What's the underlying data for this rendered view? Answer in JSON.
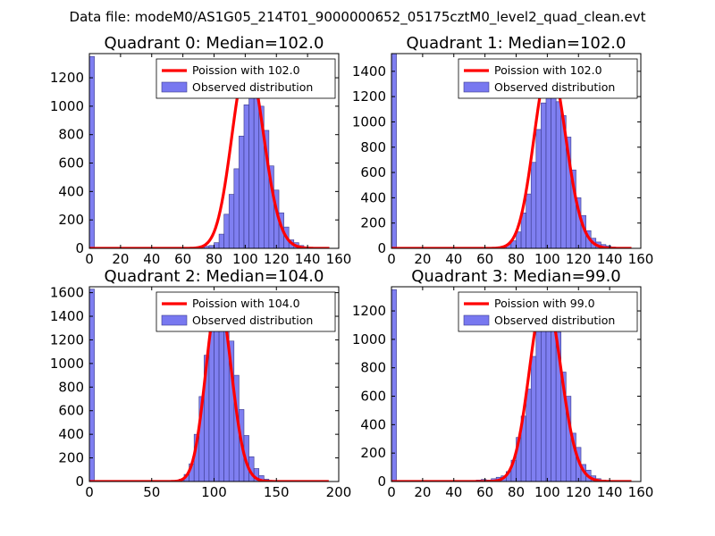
{
  "suptitle": "Data file: modeM0/AS1G05_214T01_9000000652_05175cztM0_level2_quad_clean.evt",
  "colors": {
    "bars": "#7878f0",
    "bar_edge": "#3a3a8a",
    "fit": "#ff0000",
    "axis": "#000000"
  },
  "chart_data": [
    {
      "type": "bar",
      "title": "Quadrant 0: Median=102.0",
      "median": 102.0,
      "xlim": [
        0,
        160
      ],
      "ylim": [
        0,
        1370
      ],
      "xticks": [
        "0",
        "20",
        "40",
        "60",
        "80",
        "100",
        "120",
        "140",
        "160"
      ],
      "xtick_values": [
        0,
        20,
        40,
        60,
        80,
        100,
        120,
        140,
        160
      ],
      "yticks": [
        "0",
        "200",
        "400",
        "600",
        "800",
        "1000",
        "1200"
      ],
      "ytick_values": [
        0,
        200,
        400,
        600,
        800,
        1000,
        1200
      ],
      "legend": [
        "Poission with 102.0",
        "Observed distribution"
      ],
      "bin_width": 3.2,
      "bins": [
        [
          0,
          1350
        ],
        [
          3.2,
          0
        ],
        [
          6.4,
          0
        ],
        [
          9.6,
          0
        ],
        [
          12.8,
          0
        ],
        [
          16,
          0
        ],
        [
          19.2,
          0
        ],
        [
          22.4,
          0
        ],
        [
          25.6,
          0
        ],
        [
          28.8,
          0
        ],
        [
          32,
          0
        ],
        [
          35.2,
          0
        ],
        [
          38.4,
          0
        ],
        [
          41.6,
          0
        ],
        [
          44.8,
          0
        ],
        [
          48,
          0
        ],
        [
          51.2,
          0
        ],
        [
          54.4,
          0
        ],
        [
          57.6,
          0
        ],
        [
          60.8,
          0
        ],
        [
          64,
          5
        ],
        [
          67.2,
          5
        ],
        [
          70.4,
          10
        ],
        [
          73.6,
          15
        ],
        [
          76.8,
          20
        ],
        [
          80,
          40
        ],
        [
          83.2,
          100
        ],
        [
          86.4,
          240
        ],
        [
          89.6,
          380
        ],
        [
          92.8,
          560
        ],
        [
          96,
          790
        ],
        [
          99.2,
          1010
        ],
        [
          102.4,
          1150
        ],
        [
          105.6,
          1180
        ],
        [
          108.8,
          1000
        ],
        [
          112,
          830
        ],
        [
          115.2,
          580
        ],
        [
          118.4,
          410
        ],
        [
          121.6,
          250
        ],
        [
          124.8,
          150
        ],
        [
          128,
          60
        ],
        [
          131.2,
          40
        ],
        [
          134.4,
          20
        ],
        [
          137.6,
          10
        ],
        [
          140.8,
          5
        ],
        [
          144,
          3
        ],
        [
          147.2,
          2
        ],
        [
          150.4,
          1
        ]
      ],
      "fit_scale": 1320
    },
    {
      "type": "bar",
      "title": "Quadrant 1: Median=102.0",
      "median": 102.0,
      "xlim": [
        0,
        160
      ],
      "ylim": [
        0,
        1540
      ],
      "xticks": [
        "0",
        "20",
        "40",
        "60",
        "80",
        "100",
        "120",
        "140",
        "160"
      ],
      "xtick_values": [
        0,
        20,
        40,
        60,
        80,
        100,
        120,
        140,
        160
      ],
      "yticks": [
        "0",
        "200",
        "400",
        "600",
        "800",
        "1000",
        "1200",
        "1400"
      ],
      "ytick_values": [
        0,
        200,
        400,
        600,
        800,
        1000,
        1200,
        1400
      ],
      "legend": [
        "Poission with 102.0",
        "Observed distribution"
      ],
      "bin_width": 3.2,
      "bins": [
        [
          0,
          1540
        ],
        [
          3.2,
          0
        ],
        [
          6.4,
          0
        ],
        [
          9.6,
          0
        ],
        [
          12.8,
          0
        ],
        [
          16,
          0
        ],
        [
          19.2,
          0
        ],
        [
          22.4,
          0
        ],
        [
          25.6,
          0
        ],
        [
          28.8,
          0
        ],
        [
          32,
          0
        ],
        [
          35.2,
          0
        ],
        [
          38.4,
          0
        ],
        [
          41.6,
          0
        ],
        [
          44.8,
          0
        ],
        [
          48,
          0
        ],
        [
          51.2,
          0
        ],
        [
          54.4,
          0
        ],
        [
          57.6,
          0
        ],
        [
          60.8,
          0
        ],
        [
          64,
          5
        ],
        [
          67.2,
          10
        ],
        [
          70.4,
          15
        ],
        [
          73.6,
          30
        ],
        [
          76.8,
          60
        ],
        [
          80,
          130
        ],
        [
          83.2,
          280
        ],
        [
          86.4,
          430
        ],
        [
          89.6,
          680
        ],
        [
          92.8,
          940
        ],
        [
          96,
          1150
        ],
        [
          99.2,
          1250
        ],
        [
          102.4,
          1240
        ],
        [
          105.6,
          1160
        ],
        [
          108.8,
          1050
        ],
        [
          112,
          880
        ],
        [
          115.2,
          620
        ],
        [
          118.4,
          400
        ],
        [
          121.6,
          260
        ],
        [
          124.8,
          140
        ],
        [
          128,
          80
        ],
        [
          131.2,
          50
        ],
        [
          134.4,
          30
        ],
        [
          137.6,
          20
        ],
        [
          140.8,
          10
        ],
        [
          144,
          5
        ],
        [
          147.2,
          3
        ],
        [
          150.4,
          1
        ]
      ],
      "fit_scale": 1460
    },
    {
      "type": "bar",
      "title": "Quadrant 2: Median=104.0",
      "median": 104.0,
      "xlim": [
        0,
        200
      ],
      "ylim": [
        0,
        1650
      ],
      "xticks": [
        "0",
        "50",
        "100",
        "150",
        "200"
      ],
      "xtick_values": [
        0,
        50,
        100,
        150,
        200
      ],
      "yticks": [
        "0",
        "200",
        "400",
        "600",
        "800",
        "1000",
        "1200",
        "1400",
        "1600"
      ],
      "ytick_values": [
        0,
        200,
        400,
        600,
        800,
        1000,
        1200,
        1400,
        1600
      ],
      "legend": [
        "Poission with 104.0",
        "Observed distribution"
      ],
      "bin_width": 4,
      "bins": [
        [
          0,
          1630
        ],
        [
          4,
          0
        ],
        [
          8,
          0
        ],
        [
          12,
          0
        ],
        [
          16,
          0
        ],
        [
          20,
          0
        ],
        [
          24,
          0
        ],
        [
          28,
          0
        ],
        [
          32,
          0
        ],
        [
          36,
          0
        ],
        [
          40,
          0
        ],
        [
          44,
          0
        ],
        [
          48,
          0
        ],
        [
          52,
          0
        ],
        [
          56,
          0
        ],
        [
          60,
          5
        ],
        [
          64,
          5
        ],
        [
          68,
          10
        ],
        [
          72,
          20
        ],
        [
          76,
          60
        ],
        [
          80,
          150
        ],
        [
          84,
          400
        ],
        [
          88,
          720
        ],
        [
          92,
          1070
        ],
        [
          96,
          1300
        ],
        [
          100,
          1450
        ],
        [
          104,
          1500
        ],
        [
          108,
          1390
        ],
        [
          112,
          1190
        ],
        [
          116,
          900
        ],
        [
          120,
          610
        ],
        [
          124,
          390
        ],
        [
          128,
          210
        ],
        [
          132,
          110
        ],
        [
          136,
          50
        ],
        [
          140,
          20
        ],
        [
          144,
          10
        ],
        [
          148,
          5
        ],
        [
          152,
          2
        ]
      ],
      "fit_scale": 1560
    },
    {
      "type": "bar",
      "title": "Quadrant 3: Median=99.0",
      "median": 99.0,
      "xlim": [
        0,
        160
      ],
      "ylim": [
        0,
        1370
      ],
      "xticks": [
        "0",
        "20",
        "40",
        "60",
        "80",
        "100",
        "120",
        "140",
        "160"
      ],
      "xtick_values": [
        0,
        20,
        40,
        60,
        80,
        100,
        120,
        140,
        160
      ],
      "yticks": [
        "0",
        "200",
        "400",
        "600",
        "800",
        "1000",
        "1200"
      ],
      "ytick_values": [
        0,
        200,
        400,
        600,
        800,
        1000,
        1200
      ],
      "legend": [
        "Poission with 99.0",
        "Observed distribution"
      ],
      "bin_width": 3.2,
      "bins": [
        [
          0,
          1350
        ],
        [
          3.2,
          0
        ],
        [
          6.4,
          0
        ],
        [
          9.6,
          0
        ],
        [
          12.8,
          0
        ],
        [
          16,
          0
        ],
        [
          19.2,
          0
        ],
        [
          22.4,
          0
        ],
        [
          25.6,
          0
        ],
        [
          28.8,
          0
        ],
        [
          32,
          0
        ],
        [
          35.2,
          0
        ],
        [
          38.4,
          0
        ],
        [
          41.6,
          0
        ],
        [
          44.8,
          0
        ],
        [
          48,
          5
        ],
        [
          51.2,
          5
        ],
        [
          54.4,
          10
        ],
        [
          57.6,
          15
        ],
        [
          60.8,
          10
        ],
        [
          64,
          20
        ],
        [
          67.2,
          30
        ],
        [
          70.4,
          40
        ],
        [
          73.6,
          70
        ],
        [
          76.8,
          150
        ],
        [
          80,
          310
        ],
        [
          83.2,
          460
        ],
        [
          86.4,
          650
        ],
        [
          89.6,
          880
        ],
        [
          92.8,
          1100
        ],
        [
          96,
          1220
        ],
        [
          99.2,
          1300
        ],
        [
          102.4,
          1280
        ],
        [
          105.6,
          1050
        ],
        [
          108.8,
          770
        ],
        [
          112,
          600
        ],
        [
          115.2,
          340
        ],
        [
          118.4,
          240
        ],
        [
          121.6,
          120
        ],
        [
          124.8,
          80
        ],
        [
          128,
          40
        ],
        [
          131.2,
          20
        ],
        [
          134.4,
          10
        ],
        [
          137.6,
          5
        ]
      ],
      "fit_scale": 1320
    }
  ]
}
